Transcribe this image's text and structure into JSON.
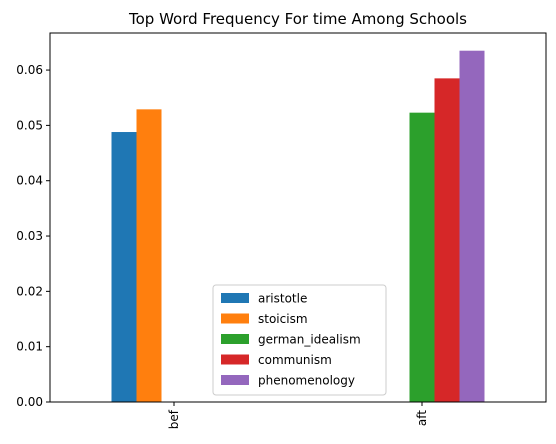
{
  "chart_data": {
    "type": "bar",
    "title": "Top Word Frequency For time Among Schools",
    "xlabel": "",
    "ylabel": "",
    "categories": [
      "bef",
      "aft"
    ],
    "series": [
      {
        "name": "aristotle",
        "color": "#1f77b4",
        "values": [
          0.0488,
          null
        ]
      },
      {
        "name": "stoicism",
        "color": "#ff7f0e",
        "values": [
          0.0529,
          null
        ]
      },
      {
        "name": "german_idealism",
        "color": "#2ca02c",
        "values": [
          null,
          0.0523
        ]
      },
      {
        "name": "communism",
        "color": "#d62728",
        "values": [
          null,
          0.0585
        ]
      },
      {
        "name": "phenomenology",
        "color": "#9467bd",
        "values": [
          null,
          0.0635
        ]
      }
    ],
    "ylim": [
      0,
      0.0667
    ],
    "yticks": [
      "0.00",
      "0.01",
      "0.02",
      "0.03",
      "0.04",
      "0.05",
      "0.06"
    ],
    "grid": false,
    "legend": "lower center"
  }
}
